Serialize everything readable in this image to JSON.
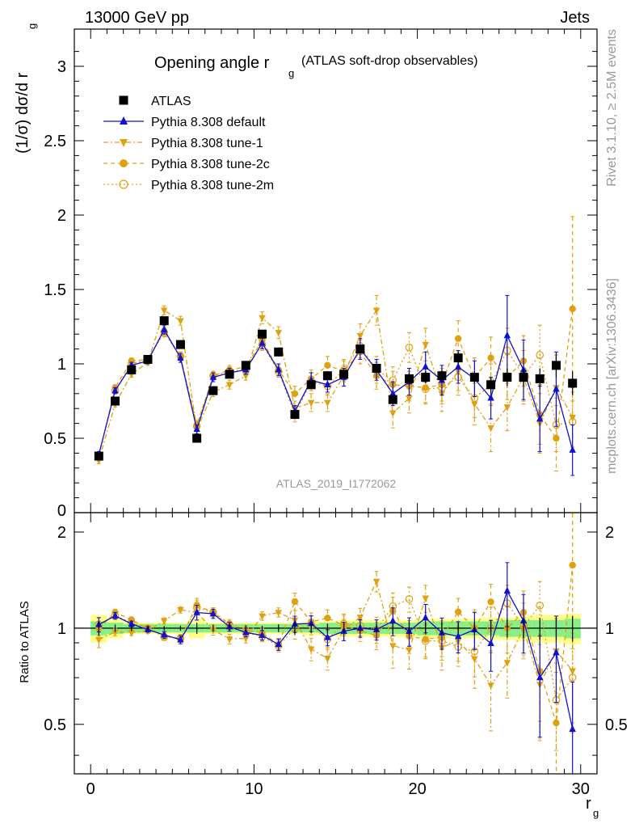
{
  "header": {
    "energy": "13000 GeV pp",
    "category": "Jets",
    "rivet": "Rivet 3.1.10, ≥ 2.5M events",
    "mcplots": "mcplots.cern.ch [arXiv:1306.3436]",
    "analysis": "ATLAS_2019_I1772062"
  },
  "colors": {
    "data": "#000000",
    "default": "#1010d0",
    "tune": "#e0a010",
    "band_inner": "#88ee88",
    "band_outer": "#ffff88"
  },
  "chart_data": {
    "type": "line",
    "title": "Opening angle r",
    "title_sub": "g",
    "title_suffix": "(ATLAS soft-drop observables)",
    "xlabel": "r",
    "xlabel_sub": "g",
    "ylabel_main": "(1/σ) dσ/d r",
    "ylabel_main_sub": "g",
    "ylabel_ratio": "Ratio to ATLAS",
    "xlim": [
      -1,
      31
    ],
    "ylim_main": [
      0,
      3.25
    ],
    "ylim_ratio": [
      0.35,
      2.3
    ],
    "x_ticks": [
      0,
      10,
      20,
      30
    ],
    "main_ticks": [
      {
        "v": 0.5,
        "label": "0.5"
      },
      {
        "v": 1,
        "label": "1"
      },
      {
        "v": 1.5,
        "label": "1.5"
      },
      {
        "v": 2,
        "label": "2"
      },
      {
        "v": 2.5,
        "label": "2.5"
      },
      {
        "v": 3,
        "label": "3"
      }
    ],
    "ratio_ticks": [
      {
        "v": 0.5,
        "label": "0.5"
      },
      {
        "v": 1,
        "label": "1"
      },
      {
        "v": 2,
        "label": "2"
      }
    ],
    "x": [
      0.5,
      1.5,
      2.5,
      3.5,
      4.5,
      5.5,
      6.5,
      7.5,
      8.5,
      9.5,
      10.5,
      11.5,
      12.5,
      13.5,
      14.5,
      15.5,
      16.5,
      17.5,
      18.5,
      19.5,
      20.5,
      21.5,
      22.5,
      23.5,
      24.5,
      25.5,
      26.5,
      27.5,
      28.5,
      29.5
    ],
    "series": [
      {
        "name": "ATLAS",
        "style": "data",
        "values": [
          0.38,
          0.75,
          0.96,
          1.03,
          1.29,
          1.13,
          0.5,
          0.82,
          0.93,
          0.99,
          1.2,
          1.08,
          0.66,
          0.86,
          0.92,
          0.93,
          1.1,
          0.97,
          0.76,
          0.9,
          0.91,
          0.92,
          1.04,
          0.91,
          0.86,
          0.91,
          0.91,
          0.9,
          0.99,
          0.87
        ],
        "errors": [
          0.02,
          0.02,
          0.02,
          0.02,
          0.02,
          0.02,
          0.02,
          0.02,
          0.02,
          0.02,
          0.02,
          0.03,
          0.03,
          0.03,
          0.03,
          0.03,
          0.03,
          0.03,
          0.03,
          0.04,
          0.04,
          0.04,
          0.04,
          0.04,
          0.05,
          0.06,
          0.06,
          0.07,
          0.08,
          0.08
        ]
      },
      {
        "name": "Pythia 8.308 default",
        "style": "default",
        "values": [
          0.39,
          0.82,
          0.99,
          1.02,
          1.23,
          1.04,
          0.56,
          0.91,
          0.94,
          0.96,
          1.14,
          0.96,
          0.68,
          0.89,
          0.86,
          0.91,
          1.1,
          0.96,
          0.8,
          0.88,
          0.98,
          0.89,
          0.98,
          0.9,
          0.77,
          1.19,
          0.96,
          0.63,
          0.83,
          0.42
        ],
        "errors": [
          0.02,
          0.02,
          0.02,
          0.02,
          0.03,
          0.03,
          0.03,
          0.03,
          0.03,
          0.03,
          0.04,
          0.04,
          0.04,
          0.05,
          0.05,
          0.06,
          0.07,
          0.07,
          0.08,
          0.09,
          0.1,
          0.1,
          0.11,
          0.12,
          0.14,
          0.27,
          0.2,
          0.22,
          0.25,
          0.17
        ]
      },
      {
        "name": "Pythia 8.308 tune-1",
        "style": "tune1",
        "values": [
          0.35,
          0.73,
          0.93,
          1.01,
          1.36,
          1.29,
          0.56,
          0.81,
          0.86,
          0.92,
          1.31,
          1.21,
          0.7,
          0.74,
          0.74,
          0.92,
          1.19,
          1.36,
          0.67,
          0.77,
          1.13,
          0.8,
          0.95,
          0.73,
          0.57,
          0.71,
          0.91,
          0.6,
          0.84,
          0.64
        ],
        "errors": [
          0.02,
          0.02,
          0.02,
          0.02,
          0.03,
          0.03,
          0.03,
          0.03,
          0.03,
          0.03,
          0.04,
          0.04,
          0.05,
          0.06,
          0.06,
          0.07,
          0.08,
          0.1,
          0.1,
          0.1,
          0.11,
          0.12,
          0.13,
          0.14,
          0.16,
          0.16,
          0.18,
          0.2,
          0.22,
          0.2
        ]
      },
      {
        "name": "Pythia 8.308 tune-2c",
        "style": "tune2c",
        "values": [
          0.38,
          0.84,
          1.02,
          1.03,
          1.22,
          1.05,
          0.59,
          0.92,
          0.96,
          0.98,
          1.16,
          0.96,
          0.8,
          0.9,
          0.99,
          0.95,
          1.08,
          0.92,
          0.86,
          0.85,
          0.84,
          0.86,
          1.17,
          0.91,
          1.04,
          0.91,
          1.02,
          0.66,
          0.5,
          1.37
        ],
        "errors": [
          0.02,
          0.02,
          0.02,
          0.02,
          0.03,
          0.03,
          0.03,
          0.03,
          0.03,
          0.03,
          0.04,
          0.04,
          0.05,
          0.06,
          0.06,
          0.07,
          0.08,
          0.09,
          0.09,
          0.1,
          0.1,
          0.11,
          0.12,
          0.13,
          0.14,
          0.15,
          0.17,
          0.2,
          0.22,
          0.62
        ]
      },
      {
        "name": "Pythia 8.308 tune-2m",
        "style": "tune2m",
        "values": [
          0.39,
          0.82,
          1.0,
          1.03,
          1.21,
          1.05,
          0.58,
          0.92,
          0.95,
          0.96,
          1.13,
          0.95,
          0.66,
          0.88,
          0.85,
          0.96,
          1.12,
          0.96,
          0.89,
          1.11,
          0.83,
          0.84,
          0.91,
          0.77,
          0.86,
          1.09,
          0.92,
          1.06,
          0.59,
          0.61
        ],
        "errors": [
          0.02,
          0.02,
          0.02,
          0.02,
          0.03,
          0.03,
          0.03,
          0.03,
          0.03,
          0.03,
          0.04,
          0.04,
          0.05,
          0.06,
          0.06,
          0.07,
          0.08,
          0.09,
          0.09,
          0.1,
          0.1,
          0.11,
          0.12,
          0.13,
          0.14,
          0.15,
          0.17,
          0.2,
          0.18,
          0.2
        ]
      }
    ],
    "ratio_band": {
      "inner": [
        0.05,
        0.04,
        0.03,
        0.03,
        0.03,
        0.03,
        0.03,
        0.03,
        0.03,
        0.03,
        0.03,
        0.03,
        0.03,
        0.03,
        0.04,
        0.04,
        0.04,
        0.04,
        0.04,
        0.04,
        0.05,
        0.05,
        0.05,
        0.05,
        0.05,
        0.06,
        0.06,
        0.06,
        0.06,
        0.07
      ],
      "outer": [
        0.1,
        0.07,
        0.04,
        0.04,
        0.04,
        0.04,
        0.07,
        0.04,
        0.04,
        0.04,
        0.04,
        0.04,
        0.04,
        0.05,
        0.05,
        0.06,
        0.06,
        0.06,
        0.06,
        0.06,
        0.07,
        0.07,
        0.07,
        0.07,
        0.08,
        0.08,
        0.09,
        0.1,
        0.1,
        0.11
      ]
    }
  }
}
